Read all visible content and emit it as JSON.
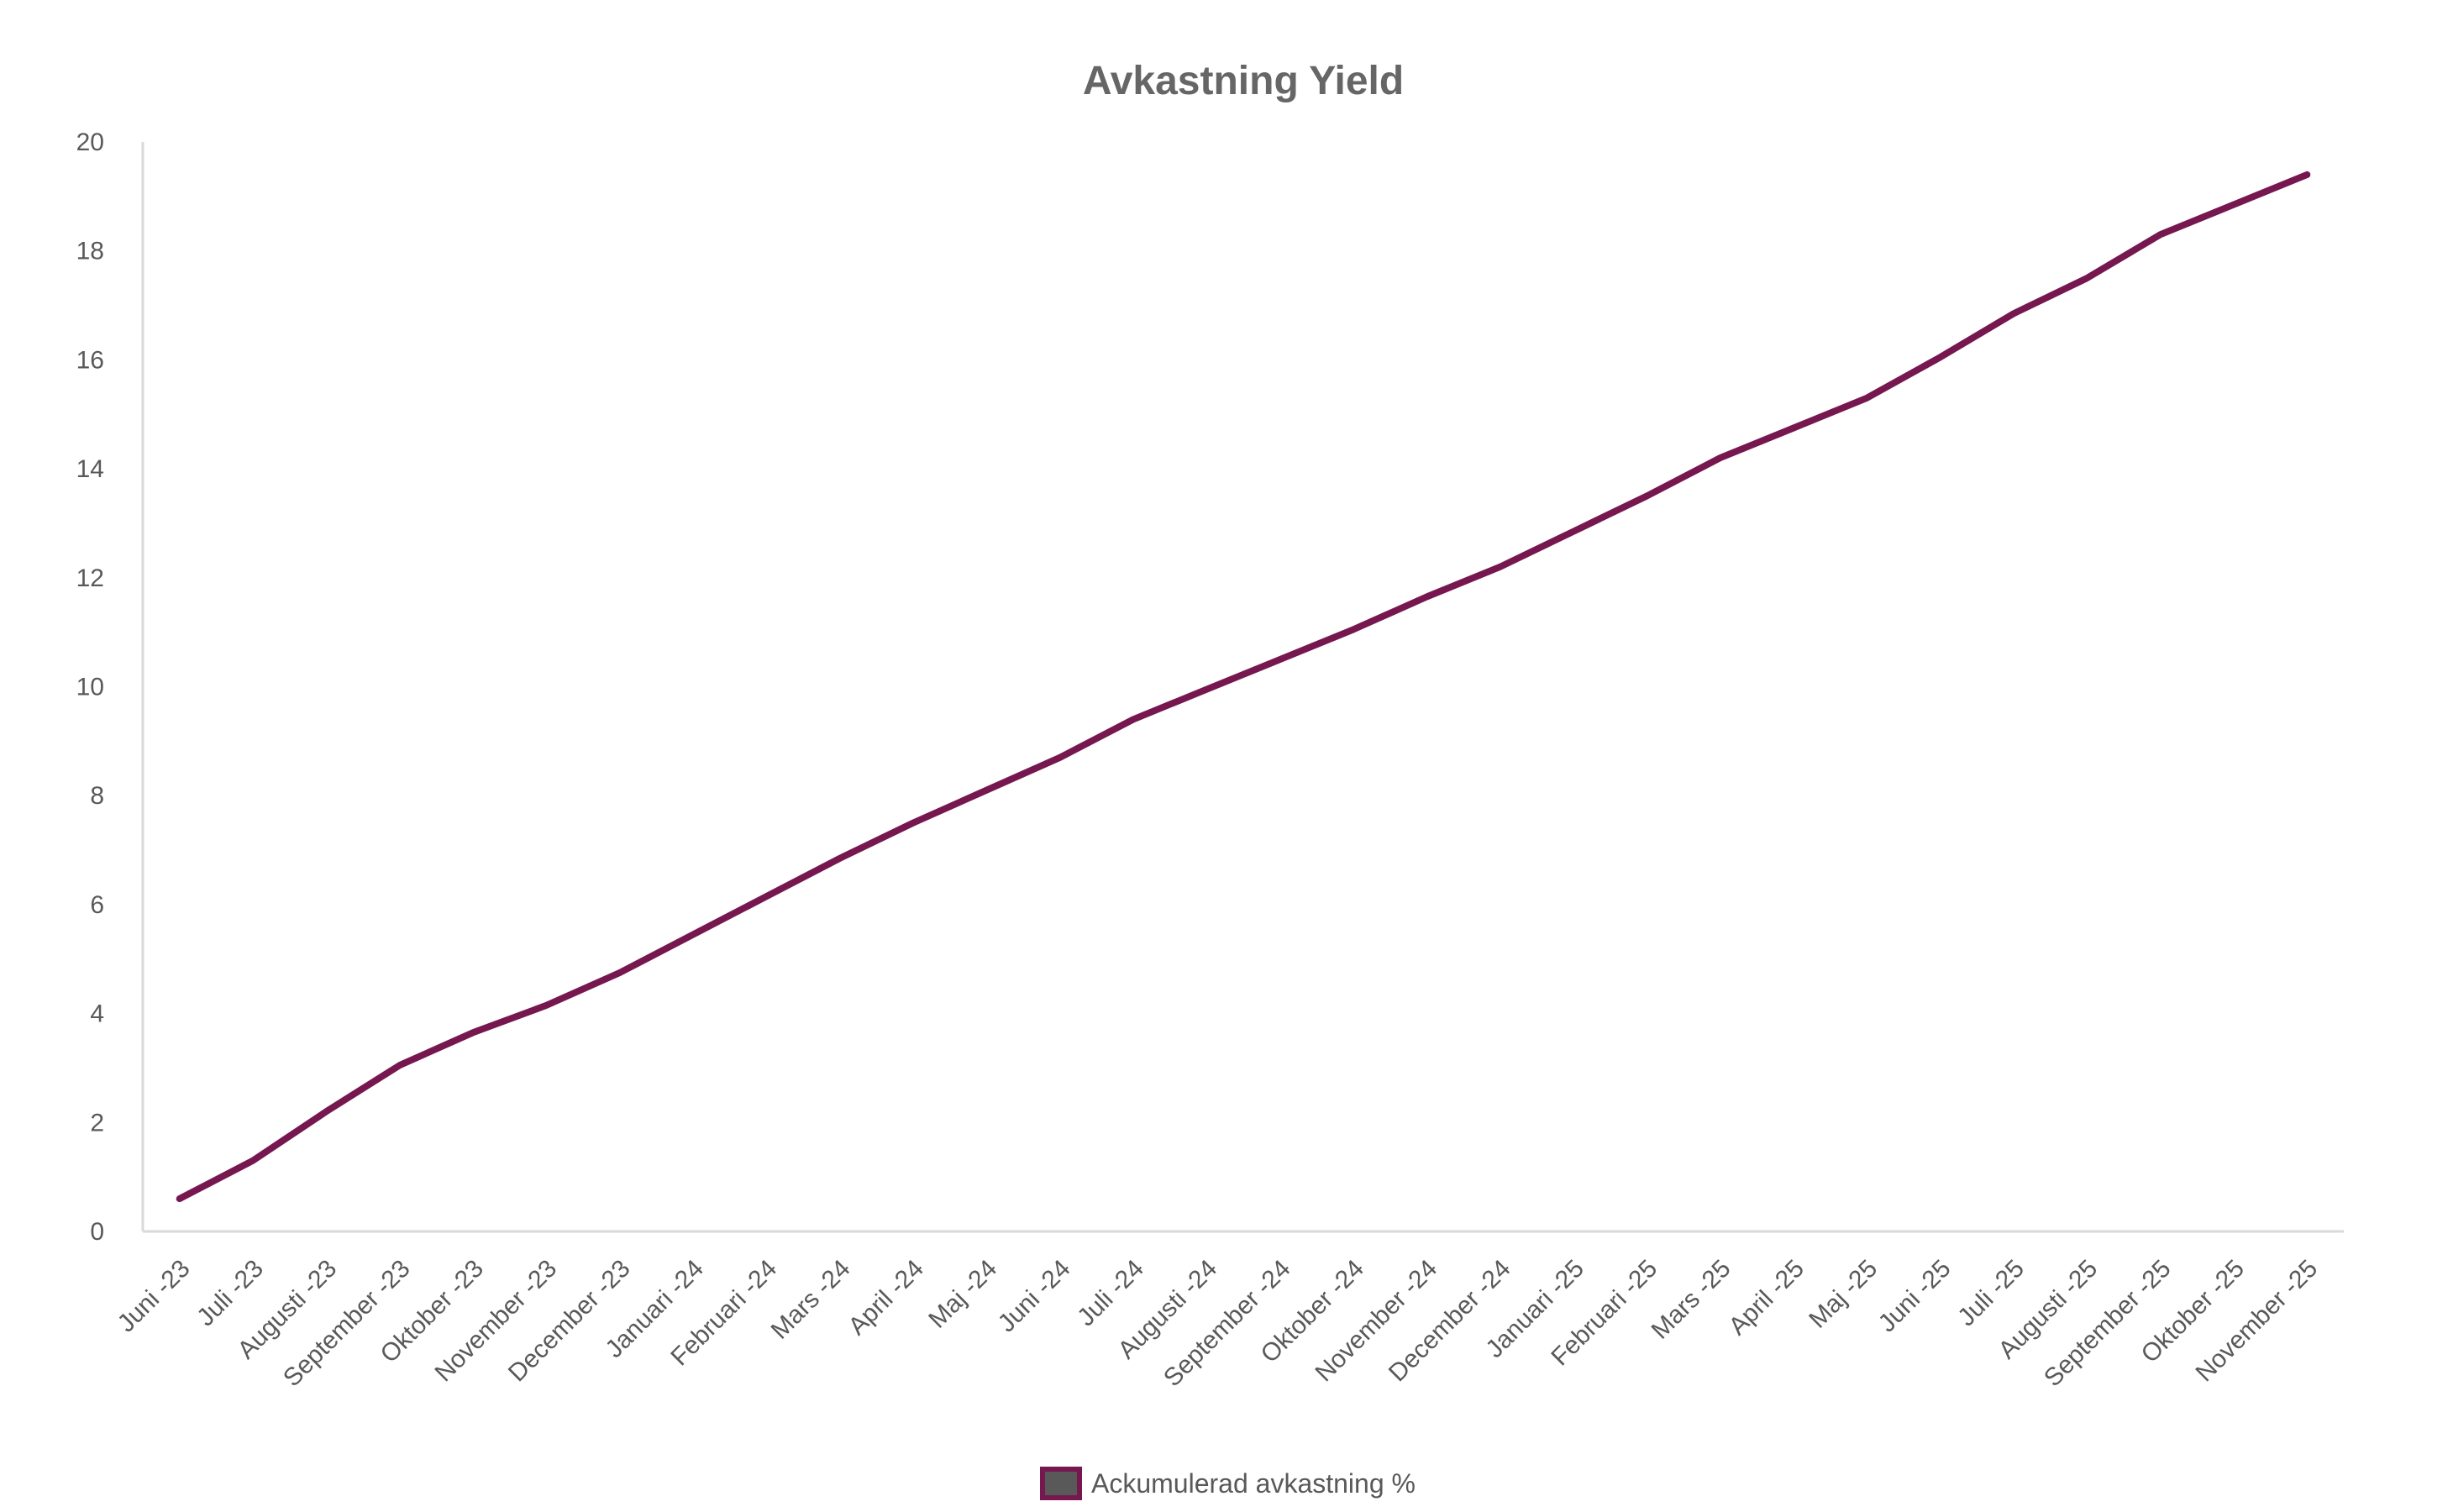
{
  "chart_data": {
    "type": "line",
    "title": "Avkastning Yield",
    "xlabel": "",
    "ylabel": "",
    "ylim": [
      0,
      20
    ],
    "yticks": [
      0,
      2,
      4,
      6,
      8,
      10,
      12,
      14,
      16,
      18,
      20
    ],
    "grid": false,
    "legend_position": "bottom",
    "categories": [
      "Juni -23",
      "Juli -23",
      "Augusti -23",
      "September -23",
      "Oktober -23",
      "November -23",
      "December -23",
      "Januari -24",
      "Februari -24",
      "Mars -24",
      "April -24",
      "Maj -24",
      "Juni -24",
      "Juli -24",
      "Augusti -24",
      "September -24",
      "Oktober -24",
      "November -24",
      "December -24",
      "Januari -25",
      "Februari -25",
      "Mars -25",
      "April -25",
      "Maj -25",
      "Juni -25",
      "Juli -25",
      "Augusti -25",
      "September -25",
      "Oktober -25",
      "November -25"
    ],
    "series": [
      {
        "name": "Ackumulerad avkastning %",
        "color": "#76184f",
        "values": [
          0.6,
          1.3,
          2.2,
          3.05,
          3.65,
          4.15,
          4.75,
          5.45,
          6.15,
          6.85,
          7.5,
          8.1,
          8.7,
          9.4,
          9.95,
          10.5,
          11.05,
          11.65,
          12.2,
          12.85,
          13.5,
          14.2,
          14.75,
          15.3,
          16.05,
          16.85,
          17.5,
          18.3,
          18.85,
          19.4
        ]
      }
    ],
    "colors": {
      "line": "#76184f",
      "axis": "#d9d9d9",
      "text": "#595959",
      "title": "#666666",
      "legend_fill": "#595959"
    }
  }
}
